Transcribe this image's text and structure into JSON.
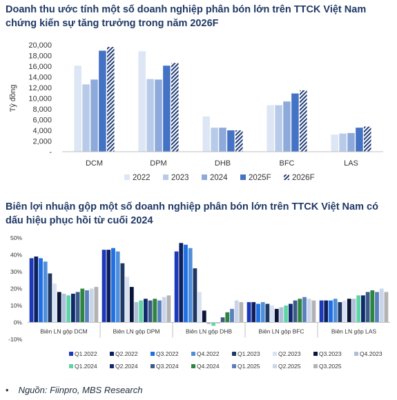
{
  "title1": "Doanh thu ước tính một số doanh nghiệp phân bón lớn trên TTCK Việt Nam chứng kiến sự tăng trưởng trong năm 2026F",
  "title2": "Biên lợi nhuận gộp một số doanh nghiệp phân bón lớn trên TTCK Việt Nam có dấu hiệu phục hồi từ cuối 2024",
  "source": "Nguồn: Fiinpro, MBS Research",
  "bullet": "•",
  "chart_data": [
    {
      "type": "bar",
      "ylabel": "Tỷ đồng",
      "ylim": [
        0,
        20000
      ],
      "yticks": [
        "-",
        "2,000",
        "4,000",
        "6,000",
        "8,000",
        "10,000",
        "12,000",
        "14,000",
        "16,000",
        "18,000",
        "20,000"
      ],
      "categories": [
        "DCM",
        "DPM",
        "DHB",
        "BFC",
        "LAS"
      ],
      "legend_position": "bottom",
      "series": [
        {
          "name": "2022",
          "color": "#dce6f4",
          "values": [
            16100,
            18800,
            6600,
            8700,
            3200
          ]
        },
        {
          "name": "2023",
          "color": "#b7cbe8",
          "values": [
            12600,
            13600,
            4500,
            8700,
            3400
          ]
        },
        {
          "name": "2024",
          "color": "#8eaadb",
          "values": [
            13500,
            13500,
            4500,
            9400,
            3500
          ]
        },
        {
          "name": "2025F",
          "color": "#4472c4",
          "values": [
            18900,
            16100,
            4000,
            10900,
            4500
          ]
        },
        {
          "name": "2026F",
          "color": "#2f4f8f",
          "hatched": true,
          "values": [
            19600,
            16600,
            4000,
            11500,
            4700
          ]
        }
      ]
    },
    {
      "type": "bar",
      "ylim": [
        -0.1,
        0.5
      ],
      "yticks": [
        "-10%",
        "0%",
        "10%",
        "20%",
        "30%",
        "40%",
        "50%"
      ],
      "categories": [
        "Biên LN gộp DCM",
        "Biên LN gộp DPM",
        "Biên LN gộp DHB",
        "Biên LN gộp BFC",
        "Biên LN gộp LAS"
      ],
      "legend_position": "bottom",
      "series": [
        {
          "name": "Q1.2022",
          "color": "#1c39bb",
          "values": [
            0.38,
            0.43,
            0.42,
            0.12,
            0.13
          ]
        },
        {
          "name": "Q2.2022",
          "color": "#0d1f5c",
          "values": [
            0.39,
            0.43,
            0.47,
            0.12,
            0.13
          ]
        },
        {
          "name": "Q3.2022",
          "color": "#1f6fe5",
          "values": [
            0.38,
            0.44,
            0.46,
            0.11,
            0.13
          ]
        },
        {
          "name": "Q4.2022",
          "color": "#4f8fd9",
          "values": [
            0.36,
            0.42,
            0.44,
            0.12,
            0.14
          ]
        },
        {
          "name": "Q1.2023",
          "color": "#1f3864",
          "values": [
            0.29,
            0.35,
            0.32,
            0.11,
            0.12
          ]
        },
        {
          "name": "Q2.2023",
          "color": "#d9e2f3",
          "values": [
            0.23,
            0.27,
            0.18,
            0.1,
            0.13
          ]
        },
        {
          "name": "Q3.2023",
          "color": "#0b1538",
          "values": [
            0.18,
            0.21,
            0.07,
            0.08,
            0.14
          ]
        },
        {
          "name": "Q4.2023",
          "color": "#aebfd9",
          "values": [
            0.17,
            0.12,
            -0.01,
            0.09,
            0.14
          ]
        },
        {
          "name": "Q1.2024",
          "color": "#5fd4a4",
          "values": [
            0.16,
            0.13,
            -0.02,
            0.1,
            0.16
          ]
        },
        {
          "name": "Q2.2024",
          "color": "#102a6e",
          "values": [
            0.17,
            0.14,
            0.0,
            0.11,
            0.16
          ]
        },
        {
          "name": "Q3.2024",
          "color": "#3c5a8a",
          "values": [
            0.18,
            0.13,
            0.03,
            0.13,
            0.18
          ]
        },
        {
          "name": "Q4.2024",
          "color": "#2e8540",
          "values": [
            0.2,
            0.14,
            0.06,
            0.14,
            0.19
          ]
        },
        {
          "name": "Q1.2025",
          "color": "#5b7fbf",
          "values": [
            0.19,
            0.13,
            0.08,
            0.15,
            0.18
          ]
        },
        {
          "name": "Q2.2025",
          "color": "#c9d6ea",
          "values": [
            0.2,
            0.15,
            0.13,
            0.14,
            0.2
          ]
        },
        {
          "name": "Q3.2025",
          "color": "#b3b3b3",
          "values": [
            0.21,
            0.16,
            0.12,
            0.13,
            0.18
          ]
        }
      ]
    }
  ]
}
